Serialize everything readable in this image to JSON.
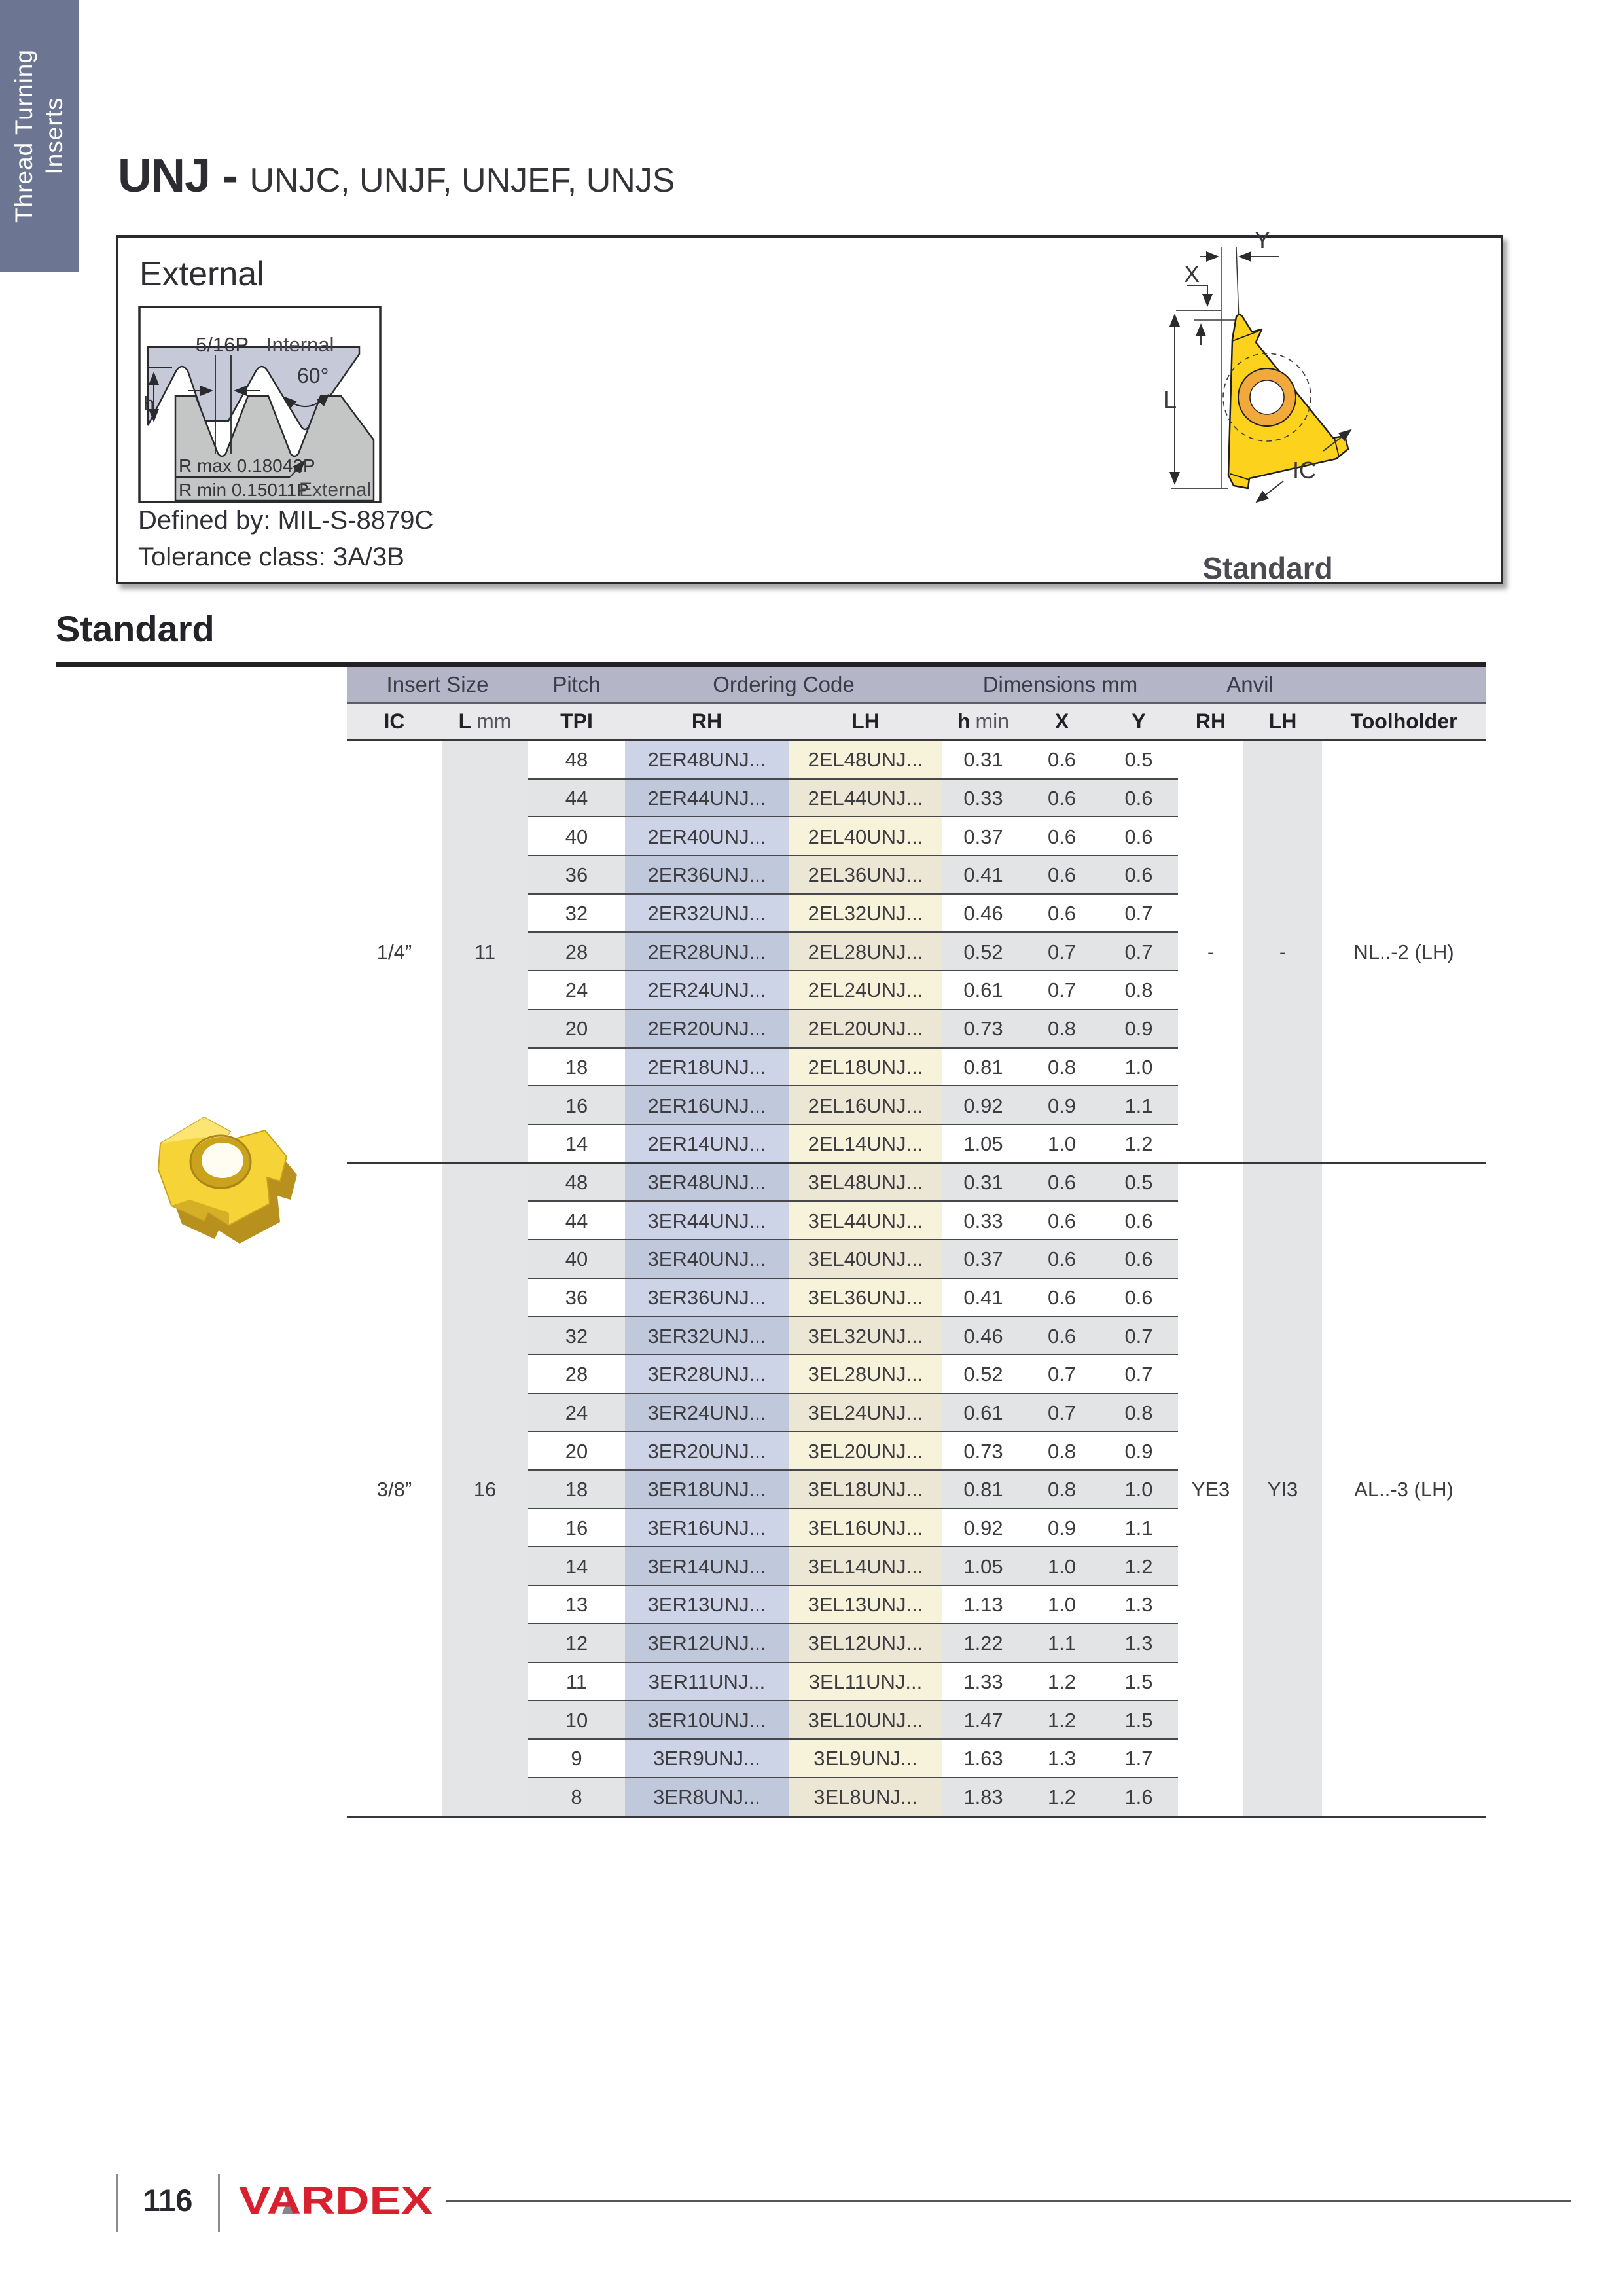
{
  "side_tab": {
    "line1": "Thread Turning",
    "line2": "Inserts"
  },
  "title": {
    "main": "UNJ -",
    "sub": "UNJC, UNJF, UNJEF, UNJS"
  },
  "external_box": {
    "heading": "External",
    "defined_by": "Defined by: MIL-S-8879C",
    "tolerance": "Tolerance class: 3A/3B",
    "thread_diagram": {
      "pitch_label": "5/16P",
      "internal_label": "Internal",
      "angle_label": "60°",
      "height_label": "h",
      "r_max_label": "R max 0.18042P",
      "r_min_label": "R min 0.15011P",
      "external_label": "External"
    },
    "insert_diagram": {
      "x_label": "X",
      "y_label": "Y",
      "l_label": "L",
      "ic_label": "IC",
      "caption": "Standard"
    }
  },
  "section_title": "Standard",
  "table": {
    "group_headers": [
      {
        "label": "Insert Size",
        "cols": 2
      },
      {
        "label": "Pitch",
        "cols": 1
      },
      {
        "label": "Ordering Code",
        "cols": 2
      },
      {
        "label": "Dimensions mm",
        "cols": 3
      },
      {
        "label": "Anvil",
        "cols": 2
      },
      {
        "label": "",
        "cols": 1
      }
    ],
    "columns": [
      {
        "label": "IC"
      },
      {
        "label": "L",
        "unit": "mm"
      },
      {
        "label": "TPI"
      },
      {
        "label": "RH"
      },
      {
        "label": "LH"
      },
      {
        "label": "h",
        "unit": "min"
      },
      {
        "label": "X"
      },
      {
        "label": "Y"
      },
      {
        "label": "RH"
      },
      {
        "label": "LH"
      },
      {
        "label": "Toolholder"
      }
    ],
    "groups": [
      {
        "ic": "1/4”",
        "l_mm": "11",
        "anvil_rh": "-",
        "anvil_lh": "-",
        "toolholder": "NL..-2 (LH)",
        "rows": [
          {
            "tpi": "48",
            "rh": "2ER48UNJ...",
            "lh": "2EL48UNJ...",
            "h_min": "0.31",
            "x": "0.6",
            "y": "0.5"
          },
          {
            "tpi": "44",
            "rh": "2ER44UNJ...",
            "lh": "2EL44UNJ...",
            "h_min": "0.33",
            "x": "0.6",
            "y": "0.6"
          },
          {
            "tpi": "40",
            "rh": "2ER40UNJ...",
            "lh": "2EL40UNJ...",
            "h_min": "0.37",
            "x": "0.6",
            "y": "0.6"
          },
          {
            "tpi": "36",
            "rh": "2ER36UNJ...",
            "lh": "2EL36UNJ...",
            "h_min": "0.41",
            "x": "0.6",
            "y": "0.6"
          },
          {
            "tpi": "32",
            "rh": "2ER32UNJ...",
            "lh": "2EL32UNJ...",
            "h_min": "0.46",
            "x": "0.6",
            "y": "0.7"
          },
          {
            "tpi": "28",
            "rh": "2ER28UNJ...",
            "lh": "2EL28UNJ...",
            "h_min": "0.52",
            "x": "0.7",
            "y": "0.7"
          },
          {
            "tpi": "24",
            "rh": "2ER24UNJ...",
            "lh": "2EL24UNJ...",
            "h_min": "0.61",
            "x": "0.7",
            "y": "0.8"
          },
          {
            "tpi": "20",
            "rh": "2ER20UNJ...",
            "lh": "2EL20UNJ...",
            "h_min": "0.73",
            "x": "0.8",
            "y": "0.9"
          },
          {
            "tpi": "18",
            "rh": "2ER18UNJ...",
            "lh": "2EL18UNJ...",
            "h_min": "0.81",
            "x": "0.8",
            "y": "1.0"
          },
          {
            "tpi": "16",
            "rh": "2ER16UNJ...",
            "lh": "2EL16UNJ...",
            "h_min": "0.92",
            "x": "0.9",
            "y": "1.1"
          },
          {
            "tpi": "14",
            "rh": "2ER14UNJ...",
            "lh": "2EL14UNJ...",
            "h_min": "1.05",
            "x": "1.0",
            "y": "1.2"
          }
        ]
      },
      {
        "ic": "3/8”",
        "l_mm": "16",
        "anvil_rh": "YE3",
        "anvil_lh": "YI3",
        "toolholder": "AL..-3 (LH)",
        "rows": [
          {
            "tpi": "48",
            "rh": "3ER48UNJ...",
            "lh": "3EL48UNJ...",
            "h_min": "0.31",
            "x": "0.6",
            "y": "0.5"
          },
          {
            "tpi": "44",
            "rh": "3ER44UNJ...",
            "lh": "3EL44UNJ...",
            "h_min": "0.33",
            "x": "0.6",
            "y": "0.6"
          },
          {
            "tpi": "40",
            "rh": "3ER40UNJ...",
            "lh": "3EL40UNJ...",
            "h_min": "0.37",
            "x": "0.6",
            "y": "0.6"
          },
          {
            "tpi": "36",
            "rh": "3ER36UNJ...",
            "lh": "3EL36UNJ...",
            "h_min": "0.41",
            "x": "0.6",
            "y": "0.6"
          },
          {
            "tpi": "32",
            "rh": "3ER32UNJ...",
            "lh": "3EL32UNJ...",
            "h_min": "0.46",
            "x": "0.6",
            "y": "0.7"
          },
          {
            "tpi": "28",
            "rh": "3ER28UNJ...",
            "lh": "3EL28UNJ...",
            "h_min": "0.52",
            "x": "0.7",
            "y": "0.7"
          },
          {
            "tpi": "24",
            "rh": "3ER24UNJ...",
            "lh": "3EL24UNJ...",
            "h_min": "0.61",
            "x": "0.7",
            "y": "0.8"
          },
          {
            "tpi": "20",
            "rh": "3ER20UNJ...",
            "lh": "3EL20UNJ...",
            "h_min": "0.73",
            "x": "0.8",
            "y": "0.9"
          },
          {
            "tpi": "18",
            "rh": "3ER18UNJ...",
            "lh": "3EL18UNJ...",
            "h_min": "0.81",
            "x": "0.8",
            "y": "1.0"
          },
          {
            "tpi": "16",
            "rh": "3ER16UNJ...",
            "lh": "3EL16UNJ...",
            "h_min": "0.92",
            "x": "0.9",
            "y": "1.1"
          },
          {
            "tpi": "14",
            "rh": "3ER14UNJ...",
            "lh": "3EL14UNJ...",
            "h_min": "1.05",
            "x": "1.0",
            "y": "1.2"
          },
          {
            "tpi": "13",
            "rh": "3ER13UNJ...",
            "lh": "3EL13UNJ...",
            "h_min": "1.13",
            "x": "1.0",
            "y": "1.3"
          },
          {
            "tpi": "12",
            "rh": "3ER12UNJ...",
            "lh": "3EL12UNJ...",
            "h_min": "1.22",
            "x": "1.1",
            "y": "1.3"
          },
          {
            "tpi": "11",
            "rh": "3ER11UNJ...",
            "lh": "3EL11UNJ...",
            "h_min": "1.33",
            "x": "1.2",
            "y": "1.5"
          },
          {
            "tpi": "10",
            "rh": "3ER10UNJ...",
            "lh": "3EL10UNJ...",
            "h_min": "1.47",
            "x": "1.2",
            "y": "1.5"
          },
          {
            "tpi": "9",
            "rh": "3ER9UNJ...",
            "lh": "3EL9UNJ...",
            "h_min": "1.63",
            "x": "1.3",
            "y": "1.7"
          },
          {
            "tpi": "8",
            "rh": "3ER8UNJ...",
            "lh": "3EL8UNJ...",
            "h_min": "1.83",
            "x": "1.2",
            "y": "1.6"
          }
        ]
      }
    ]
  },
  "footer": {
    "page_number": "116",
    "brand": "VARDEX"
  },
  "colors": {
    "tab": "#6c7591",
    "header_band": "#b4b5c7",
    "row_gray": "#e3e4e6",
    "stripe_blue": "#cdd4e7",
    "stripe_yellow": "#f7f3db",
    "logo_red": "#d9202e",
    "insert_yellow": "#fcd21c"
  }
}
